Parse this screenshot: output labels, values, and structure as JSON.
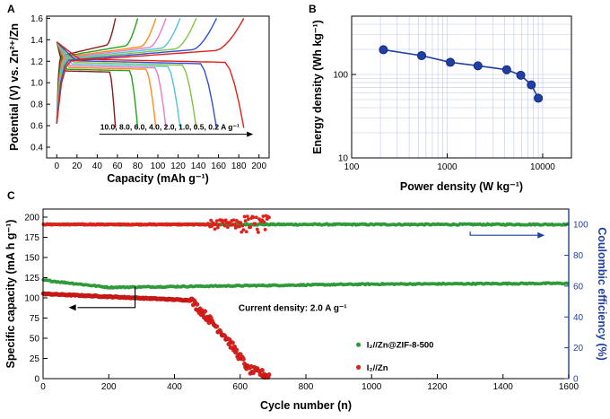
{
  "chart_data": [
    {
      "panel": "A",
      "type": "line",
      "xlabel": "Capacity (mAh g⁻¹)",
      "ylabel": "Potential (V) vs. Zn²⁺/Zn",
      "xlim": [
        -10,
        210
      ],
      "ylim": [
        0.3,
        1.62
      ],
      "xticks": [
        "0",
        "20",
        "40",
        "60",
        "80",
        "100",
        "120",
        "140",
        "160",
        "180",
        "200"
      ],
      "yticks": [
        "0.4",
        "0.6",
        "0.8",
        "1.0",
        "1.2",
        "1.4",
        "1.6"
      ],
      "annotation": "10.0, 8.0, 6.0, 4.0, 2.0, 1.0, 0.5, 0.2 A g⁻¹",
      "series": [
        {
          "current": 10.0,
          "capacity": 58,
          "color": "#8b1a1a"
        },
        {
          "current": 8.0,
          "capacity": 80,
          "color": "#22a21e"
        },
        {
          "current": 6.0,
          "capacity": 98,
          "color": "#ff8c1a"
        },
        {
          "current": 4.0,
          "capacity": 108,
          "color": "#ee77c8"
        },
        {
          "current": 2.0,
          "capacity": 122,
          "color": "#4fc3d9"
        },
        {
          "current": 1.0,
          "capacity": 138,
          "color": "#80c341"
        },
        {
          "current": 0.5,
          "capacity": 158,
          "color": "#2f4fd8"
        },
        {
          "current": 0.2,
          "capacity": 185,
          "color": "#e0201b"
        }
      ]
    },
    {
      "panel": "B",
      "type": "line",
      "xlabel": "Power density (W kg⁻¹)",
      "ylabel": "Energy density (Wh kg⁻¹)",
      "xscale": "log",
      "yscale": "log",
      "xlim": [
        100,
        20000
      ],
      "ylim": [
        10,
        500
      ],
      "xticks": [
        "100",
        "1000",
        "10000"
      ],
      "yticks": [
        "10",
        "100"
      ],
      "x": [
        215,
        540,
        1080,
        2100,
        4200,
        5900,
        7600,
        9000
      ],
      "y": [
        198,
        168,
        140,
        127,
        114,
        98,
        75,
        52
      ],
      "color": "#1f3fa5"
    },
    {
      "panel": "C",
      "type": "scatter",
      "xlabel": "Cycle number (n)",
      "ylabel": "Specific capacity (mA h g⁻¹)",
      "y2label": "Coulombic efficiency (%)",
      "xlim": [
        0,
        1600
      ],
      "ylim": [
        0,
        210
      ],
      "y2lim": [
        0,
        110
      ],
      "xticks": [
        "0",
        "200",
        "400",
        "600",
        "800",
        "1000",
        "1200",
        "1400",
        "1600"
      ],
      "yticks": [
        "0",
        "25",
        "50",
        "75",
        "100",
        "125",
        "150",
        "175",
        "200"
      ],
      "y2ticks": [
        "0",
        "20",
        "40",
        "60",
        "80",
        "100"
      ],
      "annotation": "Current density: 2.0 A g⁻¹",
      "series": [
        {
          "name": "I₂//Zn@ZIF-8-500",
          "color": "#2e9a38",
          "cycles": 1600,
          "capacity_start": 122,
          "capacity_plateau": 113,
          "capacity_end": 118,
          "ce": 100
        },
        {
          "name": "I₂//Zn",
          "color": "#e0201b",
          "cycles": 690,
          "capacity_start": 105,
          "capacity_at_450": 97,
          "capacity_at_550": 55,
          "capacity_at_600": 18,
          "capacity_end": 3,
          "ce": 100
        }
      ]
    }
  ]
}
